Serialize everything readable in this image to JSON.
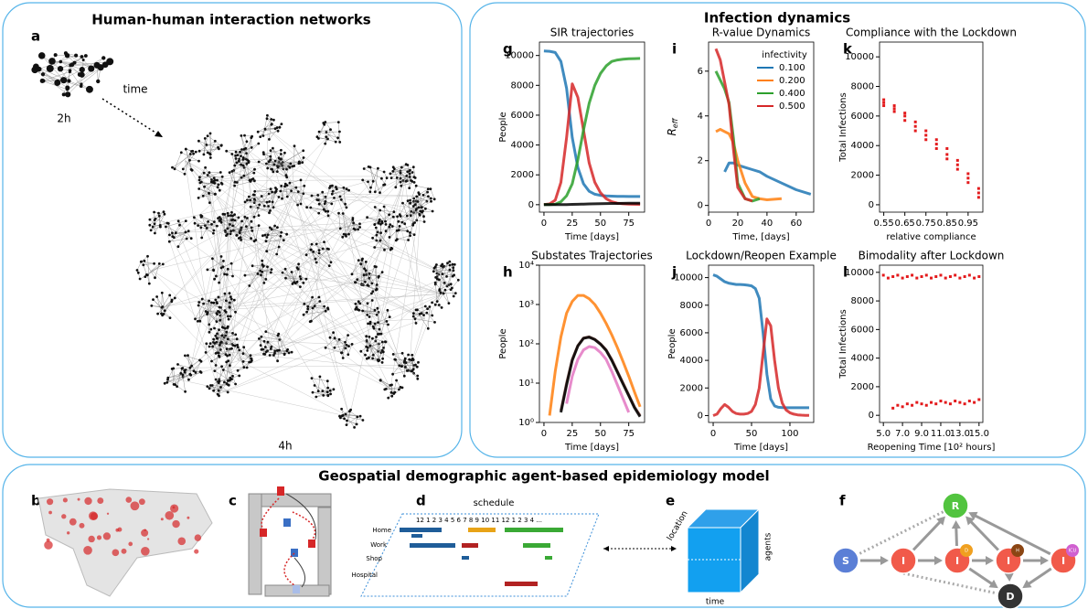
{
  "network": {
    "title": "Human-human interaction networks",
    "panel": "a",
    "small_label": "2h",
    "arrow_label": "time",
    "large_label": "4h"
  },
  "dynamics": {
    "title": "Infection dynamics"
  },
  "chart_data": [
    {
      "type": "line",
      "panel": "g",
      "title": "SIR trajectories",
      "xlabel": "Time [days]",
      "ylabel": "People",
      "x": [
        0,
        5,
        10,
        15,
        20,
        25,
        30,
        35,
        40,
        45,
        50,
        55,
        60,
        65,
        70,
        75,
        80,
        85
      ],
      "series": [
        {
          "color": "#1f77b4",
          "values": [
            10300,
            10280,
            10200,
            9600,
            7800,
            4500,
            2500,
            1400,
            900,
            700,
            620,
            590,
            570,
            560,
            555,
            550,
            550,
            550
          ]
        },
        {
          "color": "#d62728",
          "values": [
            0,
            50,
            300,
            1500,
            4500,
            8100,
            7200,
            5000,
            2800,
            1500,
            800,
            400,
            200,
            100,
            60,
            40,
            30,
            20
          ]
        },
        {
          "color": "#2ca02c",
          "values": [
            0,
            0,
            30,
            200,
            600,
            1400,
            3000,
            5000,
            6800,
            8000,
            8800,
            9300,
            9600,
            9700,
            9750,
            9780,
            9790,
            9800
          ]
        },
        {
          "color": "#000000",
          "values": [
            0,
            0,
            0,
            5,
            10,
            20,
            30,
            40,
            50,
            60,
            70,
            75,
            80,
            85,
            90,
            95,
            100,
            100
          ]
        }
      ],
      "xlim": [
        -4,
        89
      ],
      "ylim": [
        -500,
        10900
      ],
      "xticks": [
        0,
        25,
        50,
        75
      ],
      "yticks": [
        0,
        2000,
        4000,
        6000,
        8000,
        10000
      ]
    },
    {
      "type": "line",
      "panel": "i",
      "title": "R-value Dynamics",
      "xlabel": "Time, [days]",
      "ylabel": "R",
      "ylabel_sub": "eff",
      "legend_title": "infectivity",
      "x": [
        5,
        8,
        11,
        14,
        17,
        20,
        25,
        30,
        35,
        40,
        50,
        60,
        70
      ],
      "series": [
        {
          "name": "0.100",
          "color": "#1f77b4",
          "values": [
            null,
            null,
            1.5,
            1.9,
            1.9,
            1.8,
            1.7,
            1.6,
            1.5,
            1.3,
            1.0,
            0.7,
            0.5
          ]
        },
        {
          "name": "0.200",
          "color": "#ff7f0e",
          "values": [
            3.3,
            3.4,
            3.3,
            3.2,
            2.8,
            2.0,
            1.0,
            0.4,
            0.3,
            0.25,
            0.3,
            null,
            null
          ]
        },
        {
          "name": "0.400",
          "color": "#2ca02c",
          "values": [
            6.0,
            5.6,
            5.2,
            4.6,
            3.0,
            1.0,
            0.3,
            0.2,
            0.3,
            null,
            null,
            null,
            null
          ]
        },
        {
          "name": "0.500",
          "color": "#d62728",
          "values": [
            7.0,
            6.5,
            5.5,
            4.5,
            2.5,
            0.8,
            0.3,
            0.2,
            null,
            null,
            null,
            null,
            null
          ]
        }
      ],
      "xlim": [
        0,
        72
      ],
      "ylim": [
        -0.3,
        7.3
      ],
      "xticks": [
        0,
        20,
        40,
        60
      ],
      "yticks": [
        0,
        2,
        4,
        6
      ]
    },
    {
      "type": "scatter",
      "panel": "k",
      "title": "Compliance with the Lockdown",
      "xlabel": "relative compliance",
      "ylabel": "Total Infections",
      "color": "#e31a1c",
      "x": [
        0.55,
        0.55,
        0.55,
        0.6,
        0.6,
        0.6,
        0.65,
        0.65,
        0.65,
        0.7,
        0.7,
        0.7,
        0.75,
        0.75,
        0.75,
        0.8,
        0.8,
        0.8,
        0.85,
        0.85,
        0.85,
        0.9,
        0.9,
        0.9,
        0.95,
        0.95,
        0.95,
        1.0,
        1.0,
        1.0
      ],
      "values": [
        7100,
        6900,
        6700,
        6700,
        6500,
        6300,
        6200,
        6000,
        5700,
        5600,
        5300,
        5000,
        5000,
        4700,
        4400,
        4400,
        4100,
        3800,
        3800,
        3400,
        3100,
        3000,
        2700,
        2400,
        2100,
        1800,
        1500,
        1100,
        800,
        500
      ],
      "xlim": [
        0.53,
        1.02
      ],
      "ylim": [
        -500,
        11000
      ],
      "xticks": [
        0.55,
        0.65,
        0.75,
        0.85,
        0.95
      ],
      "yticks": [
        0,
        2000,
        4000,
        6000,
        8000,
        10000
      ]
    },
    {
      "type": "line",
      "panel": "h",
      "title": "Substates Trajectories",
      "xlabel": "Time [days]",
      "ylabel": "People",
      "log_y": true,
      "x": [
        0,
        5,
        10,
        15,
        20,
        25,
        30,
        35,
        40,
        45,
        50,
        55,
        60,
        65,
        70,
        75,
        80,
        85
      ],
      "series": [
        {
          "color": "#ff7f0e",
          "values": [
            null,
            1.5,
            20,
            150,
            600,
            1200,
            1700,
            1700,
            1400,
            1000,
            600,
            330,
            170,
            80,
            35,
            15,
            6,
            2.5
          ]
        },
        {
          "color": "#8c564b",
          "values": [
            null,
            null,
            null,
            2,
            10,
            40,
            90,
            140,
            150,
            130,
            100,
            70,
            40,
            20,
            10,
            5,
            2.5,
            1.5
          ]
        },
        {
          "color": "#000000",
          "values": [
            null,
            null,
            null,
            1.8,
            9,
            38,
            88,
            138,
            148,
            128,
            98,
            68,
            38,
            19,
            9.5,
            4.8,
            2.4,
            1.4
          ]
        },
        {
          "color": "#e377c2",
          "values": [
            null,
            null,
            null,
            null,
            3,
            15,
            40,
            70,
            85,
            80,
            60,
            40,
            20,
            9,
            4,
            1.8,
            null,
            null
          ]
        }
      ],
      "xlim": [
        -4,
        89
      ],
      "ylim": [
        1,
        10000
      ],
      "xticks": [
        0,
        25,
        50,
        75
      ],
      "yticks": [
        {
          "value": 1,
          "label": "10⁰"
        },
        {
          "value": 10,
          "label": "10¹"
        },
        {
          "value": 100,
          "label": "10²"
        },
        {
          "value": 1000,
          "label": "10³"
        },
        {
          "value": 10000,
          "label": "10⁴"
        }
      ]
    },
    {
      "type": "line",
      "panel": "j",
      "title": "Lockdown/Reopen Example",
      "xlabel": "Time [days]",
      "ylabel": "People",
      "x": [
        0,
        5,
        10,
        15,
        20,
        25,
        30,
        35,
        40,
        45,
        50,
        55,
        60,
        65,
        70,
        75,
        80,
        85,
        90,
        95,
        100,
        105,
        110,
        115,
        120,
        125
      ],
      "series": [
        {
          "color": "#1f77b4",
          "values": [
            10200,
            10100,
            9900,
            9700,
            9600,
            9550,
            9500,
            9500,
            9480,
            9450,
            9400,
            9200,
            8500,
            6000,
            3000,
            1200,
            700,
            600,
            580,
            570,
            570,
            570,
            570,
            570,
            570,
            570
          ]
        },
        {
          "color": "#d62728",
          "values": [
            0,
            100,
            500,
            800,
            600,
            300,
            150,
            100,
            100,
            150,
            300,
            800,
            2000,
            4500,
            7000,
            6500,
            4000,
            2000,
            900,
            400,
            200,
            100,
            50,
            30,
            20,
            10
          ]
        }
      ],
      "xlim": [
        -6,
        131
      ],
      "ylim": [
        -500,
        10900
      ],
      "xticks": [
        0,
        50,
        100
      ],
      "yticks": [
        0,
        2000,
        4000,
        6000,
        8000,
        10000
      ]
    },
    {
      "type": "scatter",
      "panel": "l",
      "title": "Bimodality after Lockdown",
      "xlabel": "Reopening Time [10² hours]",
      "ylabel": "Total Infections",
      "color": "#e31a1c",
      "x": [
        5.0,
        5.5,
        6.0,
        6.5,
        7.0,
        7.5,
        8.0,
        8.5,
        9.0,
        9.5,
        10.0,
        10.5,
        11.0,
        11.5,
        12.0,
        12.5,
        13.0,
        13.5,
        14.0,
        14.5,
        15.0,
        6.0,
        6.5,
        7.0,
        7.5,
        8.0,
        8.5,
        9.0,
        9.5,
        10.0,
        10.5,
        11.0,
        11.5,
        12.0,
        12.5,
        13.0,
        13.5,
        14.0,
        14.5,
        15.0
      ],
      "values": [
        9800,
        9600,
        9700,
        9800,
        9600,
        9700,
        9800,
        9600,
        9700,
        9800,
        9600,
        9700,
        9800,
        9600,
        9700,
        9800,
        9600,
        9700,
        9800,
        9600,
        9700,
        500,
        700,
        600,
        800,
        700,
        900,
        800,
        700,
        900,
        800,
        1000,
        900,
        800,
        1000,
        900,
        800,
        1000,
        900,
        1100
      ],
      "xlim": [
        4.6,
        15.4
      ],
      "ylim": [
        -500,
        10500
      ],
      "xticks": [
        {
          "value": 5,
          "label": "5.0"
        },
        {
          "value": 7,
          "label": "7.0"
        },
        {
          "value": 9,
          "label": "9.0"
        },
        {
          "value": 11,
          "label": "11.0"
        },
        {
          "value": 13,
          "label": "13.0"
        },
        {
          "value": 15,
          "label": "15.0"
        }
      ],
      "yticks": [
        0,
        2000,
        4000,
        6000,
        8000,
        10000
      ]
    }
  ],
  "model": {
    "title": "Geospatial demographic agent-based epidemiology model",
    "panels": {
      "map": "b",
      "street": "c",
      "schedule": "d",
      "cube": "e",
      "states": "f"
    },
    "schedule": {
      "title": "schedule",
      "hours": "12 1 2 3 4 5 6 7 8 9 10 11 12 1 2 3 4 ...",
      "rows": [
        "Home",
        "Work",
        "Shop",
        "Hospital"
      ]
    },
    "cube": {
      "location": "location",
      "agents": "agents",
      "time": "time"
    },
    "states": {
      "nodes": [
        {
          "label": "S"
        },
        {
          "label": "I"
        },
        {
          "label": "I",
          "badge": "D"
        },
        {
          "label": "I",
          "badge": "H"
        },
        {
          "label": "I",
          "badge": "ICU"
        },
        {
          "label": "R"
        },
        {
          "label": "D"
        }
      ]
    }
  }
}
